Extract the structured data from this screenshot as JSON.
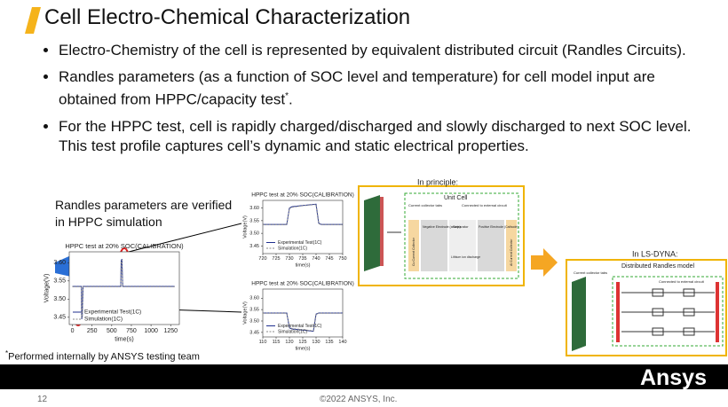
{
  "header": {
    "title": "Cell Electro-Chemical Characterization"
  },
  "bullets": [
    {
      "text": "Electro-Chemistry of the cell is represented by equivalent distributed circuit (Randles Circuits)."
    },
    {
      "text": "Randles parameters (as a function of SOC level and temperature) for cell model input are obtained from HPPC/capacity test",
      "sup": "*",
      "tail": "."
    },
    {
      "text": "For the HPPC test, cell is rapidly charged/discharged and slowly discharged to next SOC level. This test profile captures cell’s dynamic and static electrical properties."
    }
  ],
  "side_note": "Randles parameters are verified in HPPC simulation",
  "charts": [
    {
      "type": "line",
      "title": "HPPC test at 20% SOC(CALIBRATION)",
      "x_label": "time(s)",
      "y_label": "Voltage(V)",
      "x": [
        0,
        115,
        118,
        125,
        135,
        140,
        615,
        620,
        630,
        640,
        645,
        1300
      ],
      "series": [
        {
          "name": "Experimental Test(1C)",
          "color": "#1f2f8f",
          "values": [
            3.535,
            3.535,
            3.445,
            3.45,
            3.535,
            3.535,
            3.535,
            3.605,
            3.61,
            3.535,
            3.535,
            3.535
          ]
        },
        {
          "name": "Simulation(1C)",
          "color": "#8a8a8a",
          "values": [
            3.534,
            3.534,
            3.447,
            3.452,
            3.534,
            3.534,
            3.534,
            3.603,
            3.608,
            3.534,
            3.534,
            3.534
          ]
        }
      ],
      "xlim": [
        -40,
        1360
      ],
      "ylim": [
        3.43,
        3.63
      ],
      "xticks": [
        0,
        250,
        500,
        750,
        1000,
        1250
      ],
      "yticks": [
        {
          "value": 3.45,
          "label": "3.45"
        },
        {
          "value": 3.5,
          "label": "3.50"
        },
        {
          "value": 3.55,
          "label": "3.55"
        },
        {
          "value": 3.6,
          "label": "3.60"
        }
      ],
      "grid": false
    },
    {
      "type": "line",
      "title": "HPPC test at 20% SOC(CALIBRATION)",
      "x_label": "time(s)",
      "y_label": "Voltage(V)",
      "x": [
        720,
        729,
        730,
        731,
        735,
        740,
        741,
        742,
        750
      ],
      "series": [
        {
          "name": "Experimental Test(1C)",
          "color": "#1f2f8f",
          "values": [
            3.535,
            3.535,
            3.6,
            3.605,
            3.61,
            3.615,
            3.54,
            3.535,
            3.535
          ]
        },
        {
          "name": "Simulation(1C)",
          "color": "#8a8a8a",
          "values": [
            3.534,
            3.534,
            3.598,
            3.603,
            3.609,
            3.614,
            3.538,
            3.534,
            3.534
          ]
        }
      ],
      "xlim": [
        720,
        750
      ],
      "ylim": [
        3.42,
        3.63
      ],
      "xticks": [
        720,
        725,
        730,
        735,
        740,
        745,
        750
      ],
      "yticks": [
        {
          "value": 3.45,
          "label": "3.45"
        },
        {
          "value": 3.5,
          "label": "3.50"
        },
        {
          "value": 3.55,
          "label": "3.55"
        },
        {
          "value": 3.6,
          "label": "3.60"
        }
      ],
      "grid": false
    },
    {
      "type": "line",
      "title": "HPPC test at 20% SOC(CALIBRATION)",
      "x_label": "time(s)",
      "y_label": "Voltage(V)",
      "x": [
        110,
        119,
        120,
        121,
        125,
        129,
        130,
        131,
        140
      ],
      "series": [
        {
          "name": "Experimental Test(1C)",
          "color": "#1f2f8f",
          "values": [
            3.535,
            3.535,
            3.47,
            3.465,
            3.46,
            3.455,
            3.53,
            3.535,
            3.535
          ]
        },
        {
          "name": "Simulation(1C)",
          "color": "#8a8a8a",
          "values": [
            3.534,
            3.534,
            3.472,
            3.467,
            3.462,
            3.457,
            3.529,
            3.534,
            3.534
          ]
        }
      ],
      "xlim": [
        110,
        140
      ],
      "ylim": [
        3.43,
        3.64
      ],
      "xticks": [
        110,
        115,
        120,
        125,
        130,
        135,
        140
      ],
      "yticks": [
        {
          "value": 3.45,
          "label": "3.45"
        },
        {
          "value": 3.5,
          "label": "3.50"
        },
        {
          "value": 3.55,
          "label": "3.55"
        },
        {
          "value": 3.6,
          "label": "3.60"
        }
      ],
      "grid": false
    }
  ],
  "principle": {
    "label": "In principle:",
    "title": "Unit Cell",
    "tabs": "Current collector tabs",
    "external": "Connected to external circuit",
    "anode": "Negative Electrode (anode)",
    "separator": "Separator",
    "cathode": "Positive Electrode (Cathode)",
    "ion": "Lithium ion discharge",
    "cu": "Cu Current Collector",
    "al": "Al Current Collector"
  },
  "lsdyna": {
    "label": "In LS-DYNA:",
    "title": "Distributed Randles model",
    "tabs": "Current collector tabs",
    "external": "Connected to external circuit"
  },
  "footnote": {
    "sup": "*",
    "text": "Performed internally by ANSYS testing team"
  },
  "footer": {
    "page": "12",
    "copyright": "©2022 ANSYS, Inc.",
    "logo": "Ansys"
  }
}
